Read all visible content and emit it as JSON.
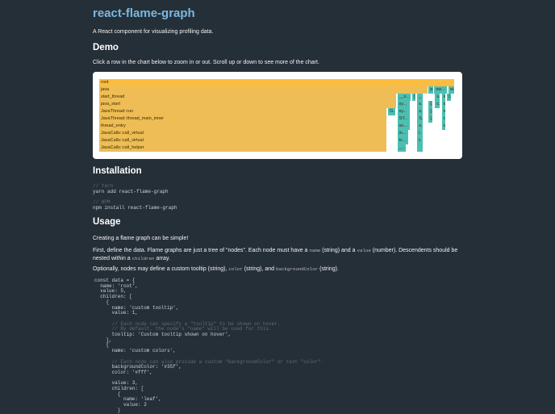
{
  "title": "react-flame-graph",
  "subtitle": "A React component for visualizing profiling data.",
  "demo": {
    "heading": "Demo",
    "instructions": "Click a row in the chart below to zoom in or out. Scroll up or down to see more of the chart."
  },
  "colors": {
    "background": "#252f38",
    "title": "#7ab8e0",
    "frame_warm": "#f2bd4c",
    "frame_cool": "#4cbfb4"
  },
  "flame": {
    "total": 100,
    "rows": [
      [
        {
          "name": "root",
          "start": 0,
          "value": 100,
          "warm": true
        }
      ],
      [
        {
          "name": "java",
          "start": 0,
          "value": 92.5,
          "warm": true
        },
        {
          "name": "p",
          "start": 92.6,
          "value": 1.4
        },
        {
          "name": "sw...",
          "start": 94.2,
          "value": 3.8
        },
        {
          "name": "w.",
          "start": 98.2,
          "value": 1.8
        }
      ],
      [
        {
          "name": "start_thread",
          "start": 0,
          "value": 83.6,
          "warm": true
        },
        {
          "name": "__s...",
          "start": 83.8,
          "value": 4
        },
        {
          "name": "[.",
          "start": 88,
          "value": 1.2
        },
        {
          "name": "_.",
          "start": 89.4,
          "value": 1.8
        },
        {
          "name": "s.",
          "start": 94.4,
          "value": 1.6
        },
        {
          "name": "x",
          "start": 96.3,
          "value": 1.2
        },
        {
          "name": "[.",
          "start": 97.8,
          "value": 1.4
        }
      ],
      [
        {
          "name": "java_start",
          "start": 0,
          "value": 83.6,
          "warm": true
        },
        {
          "name": "sy...",
          "start": 83.8,
          "value": 3.8
        },
        {
          "name": "s.",
          "start": 89.4,
          "value": 1.8
        },
        {
          "name": "[.",
          "start": 92.6,
          "value": 1.3
        },
        {
          "name": "c.",
          "start": 94.4,
          "value": 1.6
        },
        {
          "name": "x",
          "start": 96.3,
          "value": 1.2
        }
      ],
      [
        {
          "name": "JavaThread::run",
          "start": 0,
          "value": 81,
          "warm": true
        },
        {
          "name": "G.",
          "start": 81.2,
          "value": 2.2
        },
        {
          "name": "sy...",
          "start": 83.8,
          "value": 3.8
        },
        {
          "name": "s.",
          "start": 89.4,
          "value": 1.8
        },
        {
          "name": "[.",
          "start": 92.6,
          "value": 1.3
        },
        {
          "name": "s",
          "start": 96.3,
          "value": 1.2
        }
      ],
      [
        {
          "name": "JavaThread::thread_main_inner",
          "start": 0,
          "value": 81,
          "warm": true
        },
        {
          "name": "SY...",
          "start": 83.8,
          "value": 3.8
        },
        {
          "name": "S.",
          "start": 89.4,
          "value": 1.8
        },
        {
          "name": "[.",
          "start": 92.6,
          "value": 1.3
        },
        {
          "name": "r.",
          "start": 96.3,
          "value": 1.2
        }
      ],
      [
        {
          "name": "thread_entry",
          "start": 0,
          "value": 81,
          "warm": true
        },
        {
          "name": "so...",
          "start": 83.8,
          "value": 3.8
        },
        {
          "name": "s.",
          "start": 89.4,
          "value": 1.8
        },
        {
          "name": "c",
          "start": 96.3,
          "value": 1.2
        }
      ],
      [
        {
          "name": "JavaCalls::call_virtual",
          "start": 0,
          "value": 81,
          "warm": true
        },
        {
          "name": "in...",
          "start": 83.8,
          "value": 3.2
        },
        {
          "name": "i.",
          "start": 89.4,
          "value": 1.8
        }
      ],
      [
        {
          "name": "JavaCalls::call_virtual",
          "start": 0,
          "value": 81,
          "warm": true
        },
        {
          "name": "tc...",
          "start": 83.8,
          "value": 3.2
        },
        {
          "name": "t.",
          "start": 89.4,
          "value": 1.8
        }
      ],
      [
        {
          "name": "JavaCalls::call_helper",
          "start": 0,
          "value": 81,
          "warm": true
        },
        {
          "name": "_...",
          "start": 83.8,
          "value": 2.6
        },
        {
          "name": "",
          "start": 89.4,
          "value": 1.8
        }
      ]
    ]
  },
  "installation": {
    "heading": "Installation",
    "yarn_comment": "// Yarn",
    "yarn_cmd": "yarn add react-flame-graph",
    "npm_comment": "// NPM",
    "npm_cmd": "npm install react-flame-graph"
  },
  "usage": {
    "heading": "Usage",
    "p1": "Creating a flame graph can be simple!",
    "p2_a": "First, define the data. Flame graphs are just a tree of \"nodes\". Each node must have a ",
    "p2_code1": "name",
    "p2_b": " (string) and a ",
    "p2_code2": "value",
    "p2_c": " (number). Descendents should be nested within a ",
    "p2_code3": "children",
    "p2_d": " array.",
    "p3_a": "Optionally, nodes may define a custom tooltip (string), ",
    "p3_code1": "color",
    "p3_b": " (string), and ",
    "p3_code2": "backgroundColor",
    "p3_c": " (string).",
    "code": [
      {
        "t": "const data = {"
      },
      {
        "t": "  name: 'root',"
      },
      {
        "t": "  value: 5,"
      },
      {
        "t": "  children: ["
      },
      {
        "t": "    {"
      },
      {
        "t": "      name: 'custom tooltip',"
      },
      {
        "t": "      value: 1,"
      },
      {
        "t": ""
      },
      {
        "t": "      // Each node can specify a \"tooltip\" to be shown on hover.",
        "c": "cm"
      },
      {
        "t": "      // By default, the node's \"name\" will be used for this.",
        "c": "cm"
      },
      {
        "t": "      tooltip: 'Custom tooltip shown on hover',"
      },
      {
        "t": "    },"
      },
      {
        "t": "    {"
      },
      {
        "t": "      name: 'custom colors',"
      },
      {
        "t": ""
      },
      {
        "t": "      // Each node can also provide a custom \"backgroundColor\" or text \"color\".",
        "c": "cm"
      },
      {
        "t": "      backgroundColor: '#35f',"
      },
      {
        "t": "      color: '#fff',"
      },
      {
        "t": ""
      },
      {
        "t": "      value: 3,"
      },
      {
        "t": "      children: ["
      },
      {
        "t": "        {"
      },
      {
        "t": "          name: 'leaf',"
      },
      {
        "t": "          value: 2"
      },
      {
        "t": "        }"
      }
    ]
  }
}
